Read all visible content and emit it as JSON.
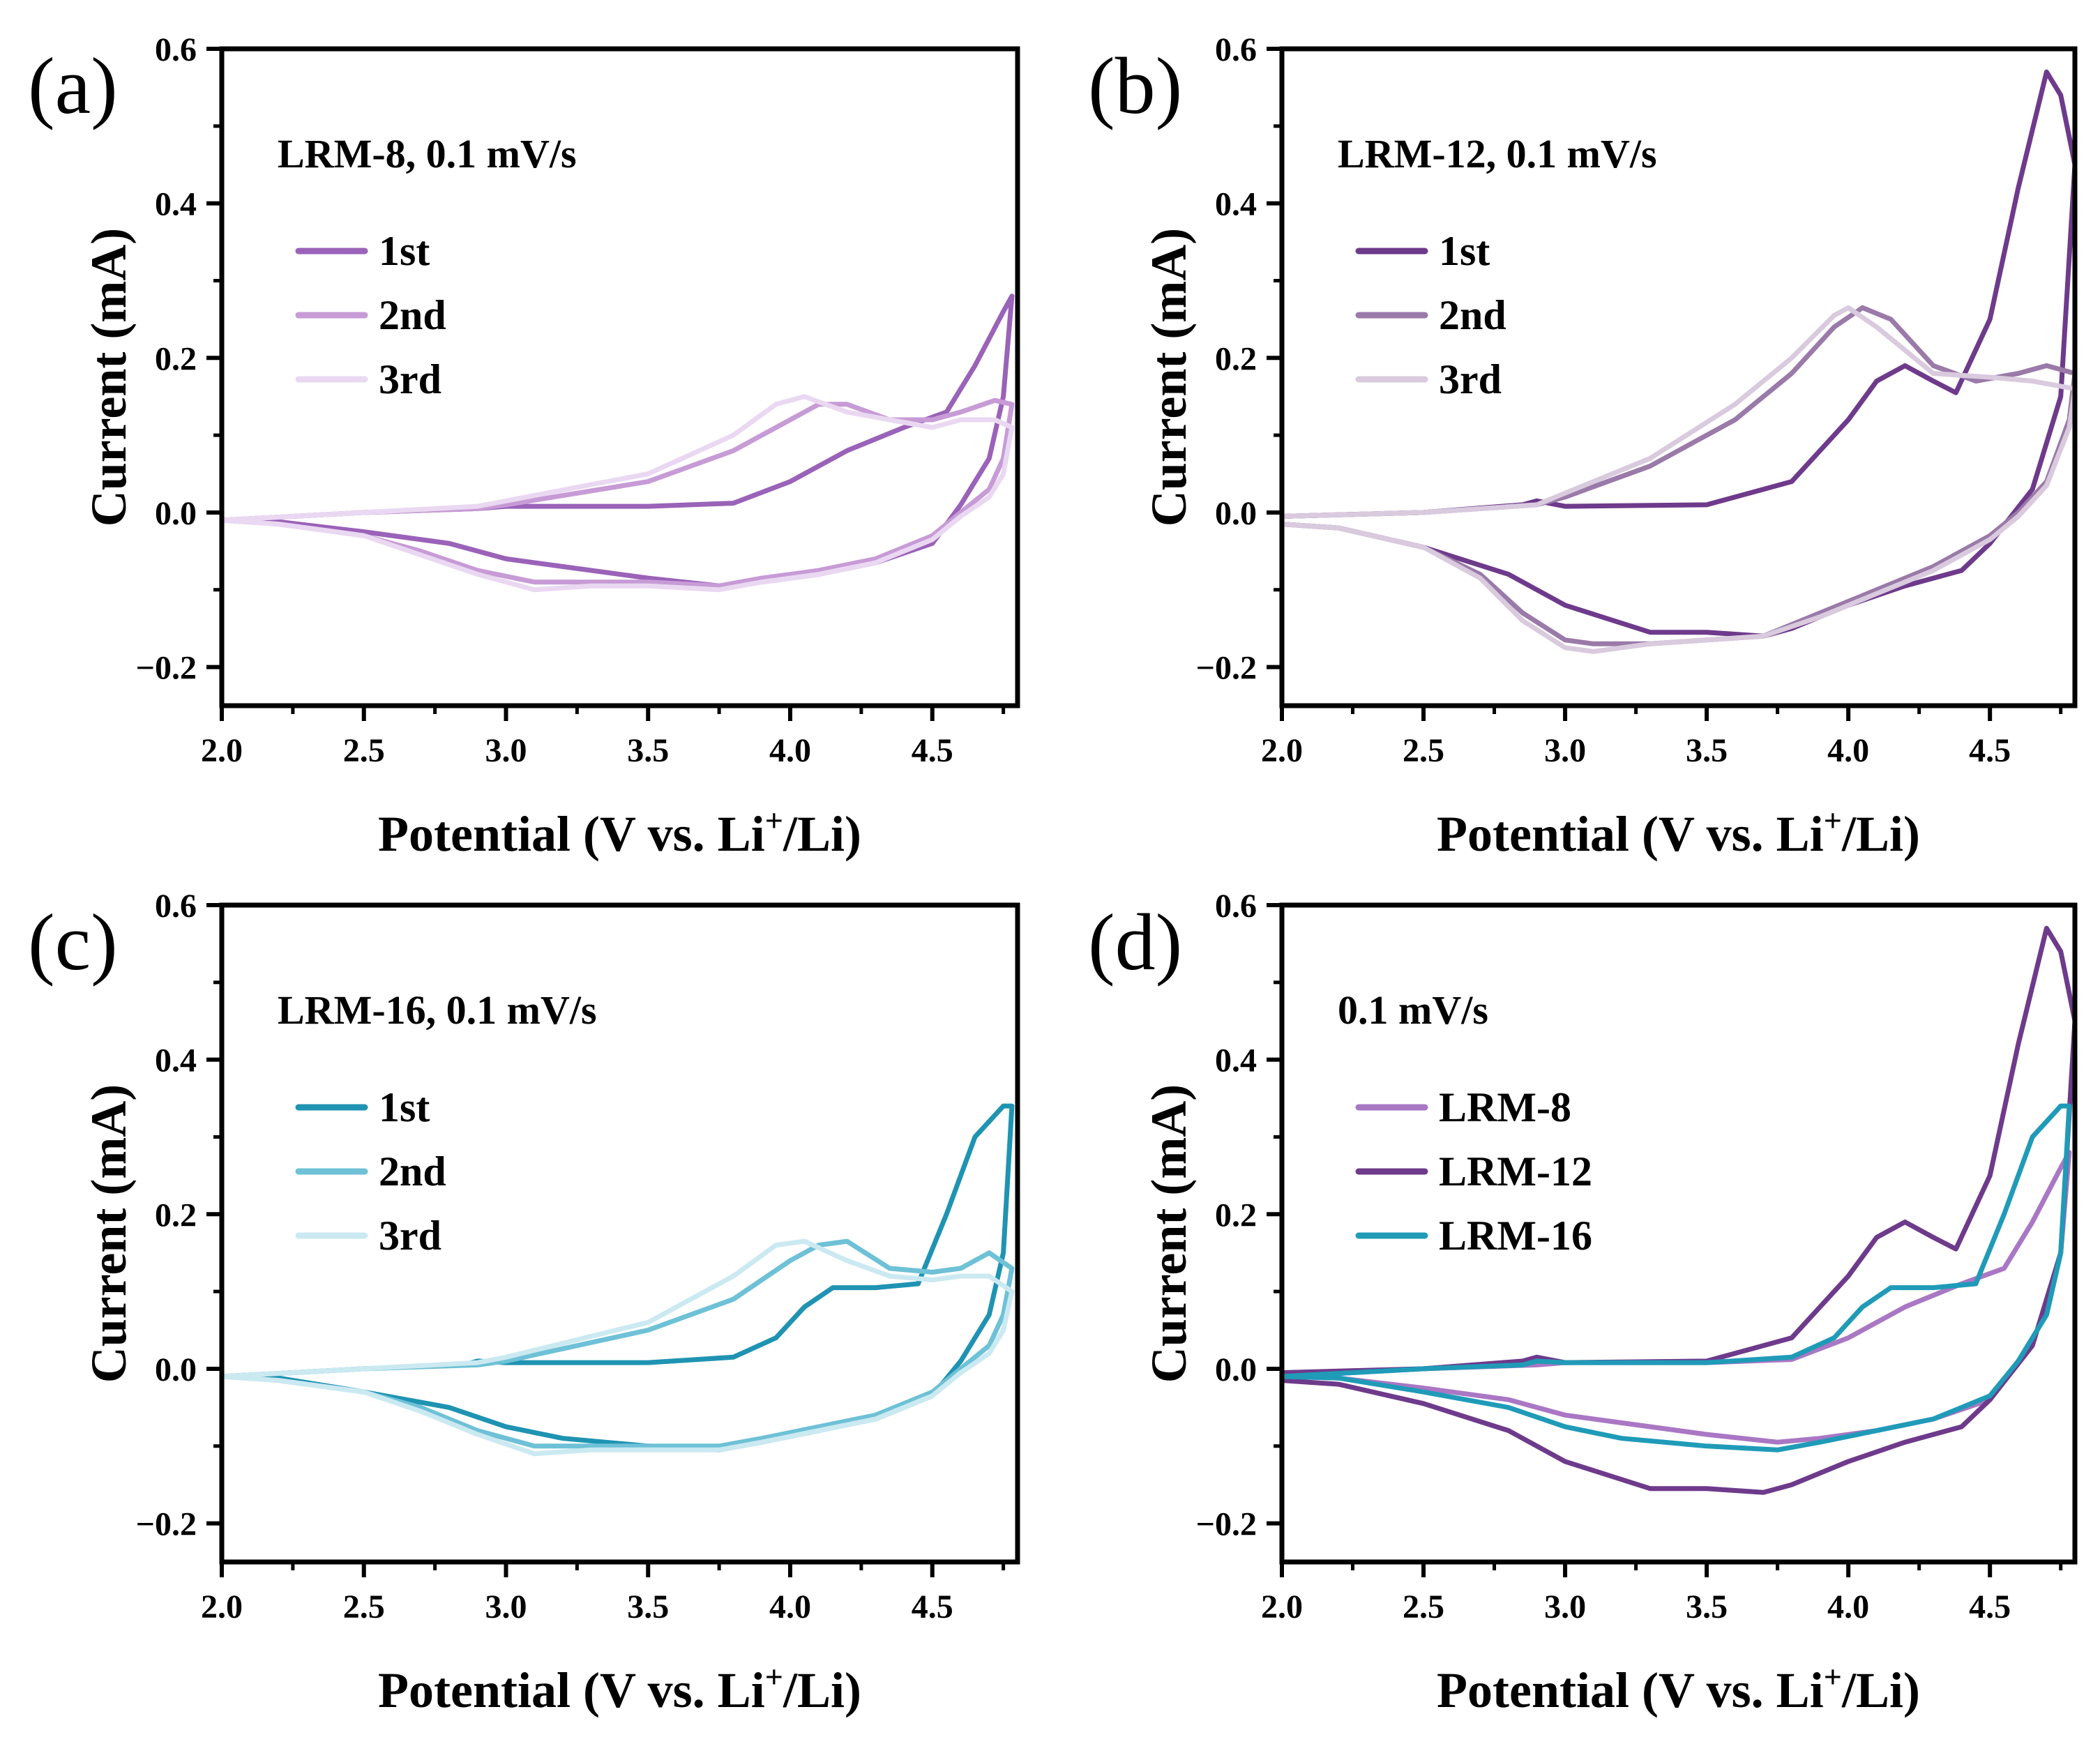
{
  "figure": {
    "x_tick_labels": [
      "2.0",
      "2.5",
      "3.0",
      "3.5",
      "4.0",
      "4.5"
    ],
    "y_tick_labels": [
      "−0.2",
      "0.0",
      "0.2",
      "0.4",
      "0.6"
    ],
    "ylabel": "Current (mA)",
    "xlabel_main": "Potential (V vs. Li",
    "xlabel_sup": "+",
    "xlabel_tail": "/Li)"
  },
  "chart_data": [
    {
      "type": "line",
      "panel": "(a)",
      "annotation": "LRM-8, 0.1 mV/s",
      "xlabel": "Potential (V vs. Li+/Li)",
      "ylabel": "Current (mA)",
      "xlim": [
        2.0,
        4.8
      ],
      "ylim": [
        -0.25,
        0.6
      ],
      "legend_position": "top-left",
      "series": [
        {
          "name": "1st",
          "color": "#9a62b8",
          "x": [
            2.0,
            2.5,
            2.9,
            3.0,
            3.5,
            3.8,
            4.0,
            4.2,
            4.4,
            4.55,
            4.65,
            4.75,
            4.78,
            4.75,
            4.7,
            4.6,
            4.5,
            4.3,
            4.1,
            3.9,
            3.75,
            3.5,
            3.2,
            3.0,
            2.8,
            2.5,
            2.2,
            2.0
          ],
          "y": [
            -0.01,
            0.0,
            0.005,
            0.008,
            0.008,
            0.012,
            0.04,
            0.08,
            0.11,
            0.13,
            0.19,
            0.26,
            0.28,
            0.15,
            0.07,
            0.01,
            -0.04,
            -0.065,
            -0.08,
            -0.09,
            -0.095,
            -0.085,
            -0.07,
            -0.06,
            -0.04,
            -0.025,
            -0.012,
            -0.01
          ]
        },
        {
          "name": "2nd",
          "color": "#c79bd6",
          "x": [
            2.0,
            2.5,
            2.9,
            3.0,
            3.5,
            3.8,
            4.0,
            4.1,
            4.2,
            4.35,
            4.5,
            4.6,
            4.72,
            4.78,
            4.75,
            4.7,
            4.6,
            4.5,
            4.3,
            4.1,
            3.9,
            3.75,
            3.5,
            3.3,
            3.1,
            2.9,
            2.7,
            2.5,
            2.2,
            2.0
          ],
          "y": [
            -0.01,
            0.0,
            0.005,
            0.01,
            0.04,
            0.08,
            0.12,
            0.14,
            0.14,
            0.12,
            0.12,
            0.13,
            0.145,
            0.14,
            0.07,
            0.03,
            0.0,
            -0.03,
            -0.06,
            -0.075,
            -0.085,
            -0.095,
            -0.09,
            -0.09,
            -0.09,
            -0.075,
            -0.05,
            -0.03,
            -0.015,
            -0.01
          ]
        },
        {
          "name": "3rd",
          "color": "#ead8f2",
          "x": [
            2.0,
            2.5,
            2.9,
            3.0,
            3.5,
            3.8,
            3.95,
            4.05,
            4.2,
            4.35,
            4.5,
            4.6,
            4.72,
            4.78,
            4.75,
            4.7,
            4.6,
            4.5,
            4.3,
            4.1,
            3.9,
            3.75,
            3.5,
            3.3,
            3.1,
            2.9,
            2.7,
            2.5,
            2.2,
            2.0
          ],
          "y": [
            -0.01,
            0.0,
            0.008,
            0.015,
            0.05,
            0.1,
            0.14,
            0.15,
            0.13,
            0.12,
            0.11,
            0.12,
            0.12,
            0.11,
            0.05,
            0.02,
            -0.005,
            -0.035,
            -0.065,
            -0.08,
            -0.09,
            -0.1,
            -0.095,
            -0.095,
            -0.1,
            -0.08,
            -0.055,
            -0.03,
            -0.015,
            -0.01
          ]
        }
      ]
    },
    {
      "type": "line",
      "panel": "(b)",
      "annotation": "LRM-12, 0.1 mV/s",
      "xlabel": "Potential (V vs. Li+/Li)",
      "ylabel": "Current (mA)",
      "xlim": [
        2.0,
        4.8
      ],
      "ylim": [
        -0.25,
        0.6
      ],
      "legend_position": "top-left",
      "series": [
        {
          "name": "1st",
          "color": "#6e3a8b",
          "x": [
            2.0,
            2.5,
            2.85,
            2.9,
            3.0,
            3.5,
            3.8,
            4.0,
            4.1,
            4.2,
            4.3,
            4.38,
            4.5,
            4.6,
            4.7,
            4.75,
            4.8,
            4.75,
            4.65,
            4.5,
            4.4,
            4.2,
            4.0,
            3.8,
            3.7,
            3.5,
            3.3,
            3.0,
            2.8,
            2.5,
            2.2,
            2.0
          ],
          "y": [
            -0.005,
            0.0,
            0.01,
            0.015,
            0.008,
            0.01,
            0.04,
            0.12,
            0.17,
            0.19,
            0.17,
            0.155,
            0.25,
            0.42,
            0.57,
            0.54,
            0.45,
            0.15,
            0.03,
            -0.04,
            -0.075,
            -0.095,
            -0.12,
            -0.15,
            -0.16,
            -0.155,
            -0.155,
            -0.12,
            -0.08,
            -0.045,
            -0.02,
            -0.015
          ]
        },
        {
          "name": "2nd",
          "color": "#9a7aa8",
          "x": [
            2.0,
            2.5,
            2.9,
            3.0,
            3.3,
            3.6,
            3.8,
            3.95,
            4.05,
            4.15,
            4.3,
            4.45,
            4.6,
            4.7,
            4.8,
            4.78,
            4.7,
            4.6,
            4.5,
            4.3,
            4.1,
            3.9,
            3.7,
            3.5,
            3.3,
            3.1,
            3.0,
            2.85,
            2.7,
            2.5,
            2.2,
            2.0
          ],
          "y": [
            -0.005,
            0.0,
            0.01,
            0.02,
            0.06,
            0.12,
            0.18,
            0.24,
            0.265,
            0.25,
            0.19,
            0.17,
            0.18,
            0.19,
            0.18,
            0.12,
            0.04,
            0.0,
            -0.03,
            -0.07,
            -0.1,
            -0.13,
            -0.16,
            -0.165,
            -0.17,
            -0.17,
            -0.165,
            -0.13,
            -0.08,
            -0.045,
            -0.02,
            -0.015
          ]
        },
        {
          "name": "3rd",
          "color": "#d9cade",
          "x": [
            2.0,
            2.5,
            2.9,
            3.0,
            3.3,
            3.6,
            3.8,
            3.95,
            4.0,
            4.1,
            4.3,
            4.5,
            4.65,
            4.8,
            4.78,
            4.7,
            4.6,
            4.5,
            4.3,
            4.1,
            3.9,
            3.7,
            3.5,
            3.3,
            3.1,
            3.0,
            2.85,
            2.7,
            2.5,
            2.2,
            2.0
          ],
          "y": [
            -0.005,
            0.0,
            0.01,
            0.025,
            0.07,
            0.14,
            0.2,
            0.255,
            0.265,
            0.24,
            0.18,
            0.175,
            0.17,
            0.16,
            0.11,
            0.035,
            -0.005,
            -0.035,
            -0.075,
            -0.105,
            -0.135,
            -0.16,
            -0.165,
            -0.17,
            -0.18,
            -0.175,
            -0.14,
            -0.085,
            -0.045,
            -0.02,
            -0.015
          ]
        }
      ]
    },
    {
      "type": "line",
      "panel": "(c)",
      "annotation": "LRM-16, 0.1 mV/s",
      "xlabel": "Potential (V vs. Li+/Li)",
      "ylabel": "Current (mA)",
      "xlim": [
        2.0,
        4.8
      ],
      "ylim": [
        -0.25,
        0.6
      ],
      "legend_position": "top-left",
      "series": [
        {
          "name": "1st",
          "color": "#1f93b2",
          "x": [
            2.0,
            2.5,
            2.85,
            2.9,
            3.0,
            3.5,
            3.8,
            3.95,
            4.05,
            4.15,
            4.3,
            4.45,
            4.55,
            4.65,
            4.75,
            4.78,
            4.75,
            4.7,
            4.6,
            4.5,
            4.3,
            4.1,
            3.9,
            3.75,
            3.5,
            3.2,
            3.0,
            2.8,
            2.5,
            2.2,
            2.0
          ],
          "y": [
            -0.01,
            0.0,
            0.005,
            0.01,
            0.008,
            0.008,
            0.015,
            0.04,
            0.08,
            0.105,
            0.105,
            0.11,
            0.2,
            0.3,
            0.34,
            0.34,
            0.15,
            0.07,
            0.01,
            -0.035,
            -0.065,
            -0.08,
            -0.095,
            -0.105,
            -0.1,
            -0.09,
            -0.075,
            -0.05,
            -0.03,
            -0.012,
            -0.01
          ]
        },
        {
          "name": "2nd",
          "color": "#6ec1d6",
          "x": [
            2.0,
            2.5,
            2.9,
            3.0,
            3.5,
            3.8,
            4.0,
            4.1,
            4.2,
            4.35,
            4.5,
            4.6,
            4.7,
            4.78,
            4.75,
            4.7,
            4.6,
            4.5,
            4.3,
            4.1,
            3.9,
            3.75,
            3.5,
            3.3,
            3.1,
            2.9,
            2.7,
            2.5,
            2.2,
            2.0
          ],
          "y": [
            -0.01,
            0.0,
            0.005,
            0.01,
            0.05,
            0.09,
            0.14,
            0.16,
            0.165,
            0.13,
            0.125,
            0.13,
            0.15,
            0.13,
            0.07,
            0.03,
            0.0,
            -0.03,
            -0.06,
            -0.075,
            -0.09,
            -0.1,
            -0.1,
            -0.1,
            -0.1,
            -0.08,
            -0.05,
            -0.03,
            -0.015,
            -0.01
          ]
        },
        {
          "name": "3rd",
          "color": "#cbe9f1",
          "x": [
            2.0,
            2.5,
            2.9,
            3.0,
            3.5,
            3.8,
            3.95,
            4.05,
            4.2,
            4.35,
            4.5,
            4.6,
            4.7,
            4.78,
            4.75,
            4.7,
            4.6,
            4.5,
            4.3,
            4.1,
            3.9,
            3.75,
            3.5,
            3.3,
            3.1,
            2.9,
            2.7,
            2.5,
            2.2,
            2.0
          ],
          "y": [
            -0.01,
            0.0,
            0.008,
            0.015,
            0.06,
            0.12,
            0.16,
            0.165,
            0.14,
            0.12,
            0.115,
            0.12,
            0.12,
            0.1,
            0.05,
            0.02,
            -0.005,
            -0.035,
            -0.065,
            -0.08,
            -0.095,
            -0.105,
            -0.105,
            -0.105,
            -0.11,
            -0.085,
            -0.055,
            -0.03,
            -0.015,
            -0.01
          ]
        }
      ]
    },
    {
      "type": "line",
      "panel": "(d)",
      "annotation": "0.1 mV/s",
      "xlabel": "Potential (V vs. Li+/Li)",
      "ylabel": "Current (mA)",
      "xlim": [
        2.0,
        4.8
      ],
      "ylim": [
        -0.25,
        0.6
      ],
      "legend_position": "top-left",
      "series": [
        {
          "name": "LRM-8",
          "color": "#a977c4",
          "x": [
            2.0,
            2.5,
            2.9,
            3.0,
            3.5,
            3.8,
            4.0,
            4.2,
            4.4,
            4.55,
            4.65,
            4.75,
            4.78,
            4.75,
            4.7,
            4.6,
            4.5,
            4.3,
            4.1,
            3.9,
            3.75,
            3.5,
            3.2,
            3.0,
            2.8,
            2.5,
            2.2,
            2.0
          ],
          "y": [
            -0.01,
            0.0,
            0.005,
            0.008,
            0.008,
            0.012,
            0.04,
            0.08,
            0.11,
            0.13,
            0.19,
            0.26,
            0.28,
            0.15,
            0.07,
            0.01,
            -0.04,
            -0.065,
            -0.08,
            -0.09,
            -0.095,
            -0.085,
            -0.07,
            -0.06,
            -0.04,
            -0.025,
            -0.012,
            -0.01
          ]
        },
        {
          "name": "LRM-12",
          "color": "#6e3a8b",
          "x": [
            2.0,
            2.5,
            2.85,
            2.9,
            3.0,
            3.5,
            3.8,
            4.0,
            4.1,
            4.2,
            4.3,
            4.38,
            4.5,
            4.6,
            4.7,
            4.75,
            4.8,
            4.75,
            4.65,
            4.5,
            4.4,
            4.2,
            4.0,
            3.8,
            3.7,
            3.5,
            3.3,
            3.0,
            2.8,
            2.5,
            2.2,
            2.0
          ],
          "y": [
            -0.005,
            0.0,
            0.01,
            0.015,
            0.008,
            0.01,
            0.04,
            0.12,
            0.17,
            0.19,
            0.17,
            0.155,
            0.25,
            0.42,
            0.57,
            0.54,
            0.45,
            0.15,
            0.03,
            -0.04,
            -0.075,
            -0.095,
            -0.12,
            -0.15,
            -0.16,
            -0.155,
            -0.155,
            -0.12,
            -0.08,
            -0.045,
            -0.02,
            -0.015
          ]
        },
        {
          "name": "LRM-16",
          "color": "#1f9bb8",
          "x": [
            2.0,
            2.5,
            2.85,
            2.9,
            3.0,
            3.5,
            3.8,
            3.95,
            4.05,
            4.15,
            4.3,
            4.45,
            4.55,
            4.65,
            4.75,
            4.78,
            4.75,
            4.7,
            4.6,
            4.5,
            4.3,
            4.1,
            3.9,
            3.75,
            3.5,
            3.2,
            3.0,
            2.8,
            2.5,
            2.2,
            2.0
          ],
          "y": [
            -0.01,
            0.0,
            0.005,
            0.01,
            0.008,
            0.008,
            0.015,
            0.04,
            0.08,
            0.105,
            0.105,
            0.11,
            0.2,
            0.3,
            0.34,
            0.34,
            0.15,
            0.07,
            0.01,
            -0.035,
            -0.065,
            -0.08,
            -0.095,
            -0.105,
            -0.1,
            -0.09,
            -0.075,
            -0.05,
            -0.03,
            -0.012,
            -0.01
          ]
        }
      ]
    }
  ]
}
